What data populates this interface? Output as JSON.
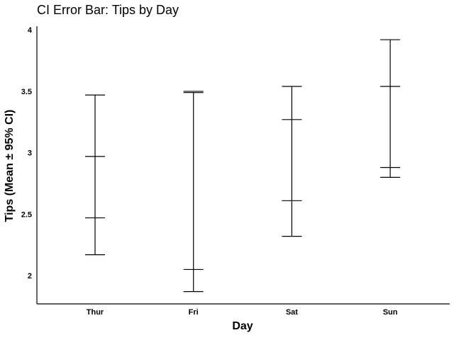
{
  "chart_data": {
    "type": "errorbar",
    "title": "CI Error Bar: Tips by Day",
    "xlabel": "Day",
    "ylabel": "Tips (Mean ± 95% CI)",
    "categories": [
      "Thur",
      "Fri",
      "Sat",
      "Sun"
    ],
    "y_ticks": [
      2,
      2.5,
      3,
      3.5,
      4
    ],
    "y_tick_labels": [
      "2",
      "2.5",
      "3",
      "3.5",
      "4"
    ],
    "ylim": [
      1.77,
      4.03
    ],
    "grid": false,
    "series": [
      {
        "bars": [
          {
            "category": "Thur",
            "lower": 2.17,
            "upper": 3.47,
            "inner_lower": 2.47,
            "inner_upper": 2.97
          },
          {
            "category": "Fri",
            "lower": 1.87,
            "upper": 3.49,
            "inner_lower": 2.05,
            "inner_upper": 3.5
          },
          {
            "category": "Sat",
            "lower": 2.32,
            "upper": 3.54,
            "inner_lower": 2.61,
            "inner_upper": 3.27
          },
          {
            "category": "Sun",
            "lower": 2.8,
            "upper": 3.92,
            "inner_lower": 2.88,
            "inner_upper": 3.54
          }
        ]
      }
    ]
  }
}
